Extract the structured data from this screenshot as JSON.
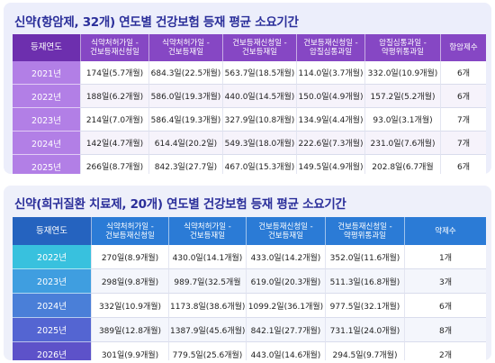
{
  "section1": {
    "title": "신약(항암제, 32개) 연도별 건강보험 등재 평균 소요기간",
    "headers": [
      [
        "등재연도"
      ],
      [
        "식약처허가일 -",
        "건보등재신청일"
      ],
      [
        "식약처허가일 -",
        "건보등재일"
      ],
      [
        "건보등재신청일 -",
        "건보등재일"
      ],
      [
        "건보등재신청일 -",
        "암질심통과일"
      ],
      [
        "암질심통과일 -",
        "약평위통과일"
      ],
      [
        "항암제수"
      ]
    ],
    "rows": [
      [
        "2021년",
        "174일(5.7개월)",
        "684.3일(22.5개월)",
        "563.7일(18.5개월)",
        "114.0일(3.7개월)",
        "332.0일(10.9개월)",
        "6개"
      ],
      [
        "2022년",
        "188일(6.2개월)",
        "586.0일(19.3개월)",
        "440.0일(14.5개월)",
        "150.0일(4.9개월)",
        "157.2일(5.2개월)",
        "6개"
      ],
      [
        "2023년",
        "214일(7.0개월)",
        "586.4일(19.3개월)",
        "327.9일(10.8개월)",
        "134.9일(4.4개월)",
        "93.0일(3.1개월)",
        "7개"
      ],
      [
        "2024년",
        "142일(4.7개월)",
        "614.4일(20.2일)",
        "549.3일(18.0개월)",
        "222.6일(7.3개월)",
        "231.0일(7.6개월)",
        "7개"
      ],
      [
        "2025년",
        "266일(8.7개월)",
        "842.3일(27.7일)",
        "467.0일(15.3개월)",
        "149.5일(4.9개월)",
        "202.8일(6.7개월",
        "6개"
      ]
    ]
  },
  "section2": {
    "title": "신약(희귀질환 치료제, 20개) 연도별 건강보험 등재 평균 소요기간",
    "headers": [
      [
        "등재연도"
      ],
      [
        "식약처허가일 -",
        "건보등재신청일"
      ],
      [
        "식약처허가일 -",
        "건보등재일"
      ],
      [
        "건보등재신청일 -",
        "건보등재일"
      ],
      [
        "건보등재신청일 -",
        "약평위통과일"
      ],
      [
        "약제수"
      ]
    ],
    "rows": [
      [
        "2022년",
        "270일(8.9개월)",
        "430.0일(14.1개월)",
        "433.0일(14.2개월)",
        "352.0일(11.6개월)",
        "1개"
      ],
      [
        "2023년",
        "298일(9.8개월)",
        "989.7일(32.5개월",
        "619.0일(20.3개월)",
        "511.3일(16.8개월)",
        "3개"
      ],
      [
        "2024년",
        "332일(10.9개월)",
        "1173.8일(38.6개월)",
        "1099.2일(36.1개월)",
        "977.5일(32.1개월)",
        "6개"
      ],
      [
        "2025년",
        "389일(12.8개월)",
        "1387.9일(45.6개월)",
        "842.1일(27.7개월)",
        "731.1일(24.0개월)",
        "8개"
      ],
      [
        "2026년",
        "301일(9.9개월)",
        "779.5일(25.6개월)",
        "443.0일(14.6개월)",
        "294.5일(9.7개월)",
        "2개"
      ]
    ]
  }
}
